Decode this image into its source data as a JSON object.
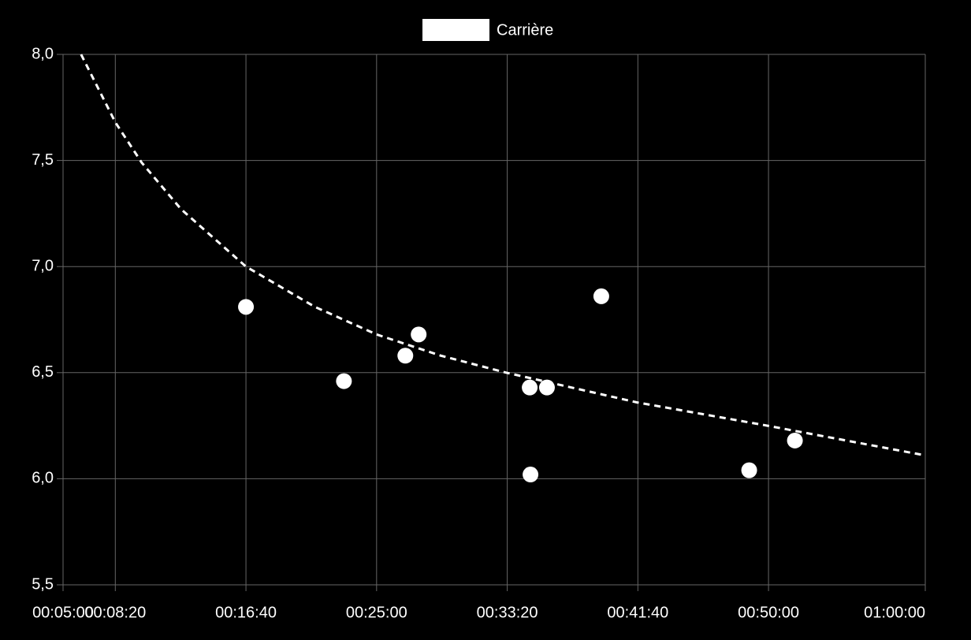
{
  "chart_data": {
    "type": "scatter",
    "series": [
      {
        "name": "Carrière",
        "color": "#ffffff",
        "x": [
          1000,
          1375,
          1610,
          1661,
          2086,
          2089,
          2152,
          2360,
          2926,
          3101
        ],
        "values": [
          6.81,
          6.46,
          6.58,
          6.68,
          6.43,
          6.02,
          6.43,
          6.86,
          6.04,
          6.18
        ]
      }
    ],
    "trend": {
      "color": "#ffffff",
      "dashed": true,
      "x": [
        369,
        500,
        601,
        752,
        1000,
        1264,
        1500,
        1746,
        1996,
        2496,
        2996,
        3600
      ],
      "values": [
        8.0,
        7.68,
        7.49,
        7.27,
        7.0,
        6.81,
        6.68,
        6.58,
        6.5,
        6.36,
        6.25,
        6.11
      ]
    },
    "xlim": [
      300,
      3600
    ],
    "xticks": [
      {
        "value": 300,
        "label": "00:05:00"
      },
      {
        "value": 500,
        "label": "00:08:20"
      },
      {
        "value": 1000,
        "label": "00:16:40"
      },
      {
        "value": 1500,
        "label": "00:25:00"
      },
      {
        "value": 2000,
        "label": "00:33:20"
      },
      {
        "value": 2500,
        "label": "00:41:40"
      },
      {
        "value": 3000,
        "label": "00:50:00"
      },
      {
        "value": 3600,
        "label": "01:00:00"
      }
    ],
    "ylim": [
      5.5,
      8.0
    ],
    "yticks": [
      {
        "value": 5.5,
        "label": "5,5"
      },
      {
        "value": 6.0,
        "label": "6,0"
      },
      {
        "value": 6.5,
        "label": "6,5"
      },
      {
        "value": 7.0,
        "label": "7,0"
      },
      {
        "value": 7.5,
        "label": "7,5"
      },
      {
        "value": 8.0,
        "label": "8,0"
      }
    ],
    "grid": true,
    "legend": "top"
  }
}
